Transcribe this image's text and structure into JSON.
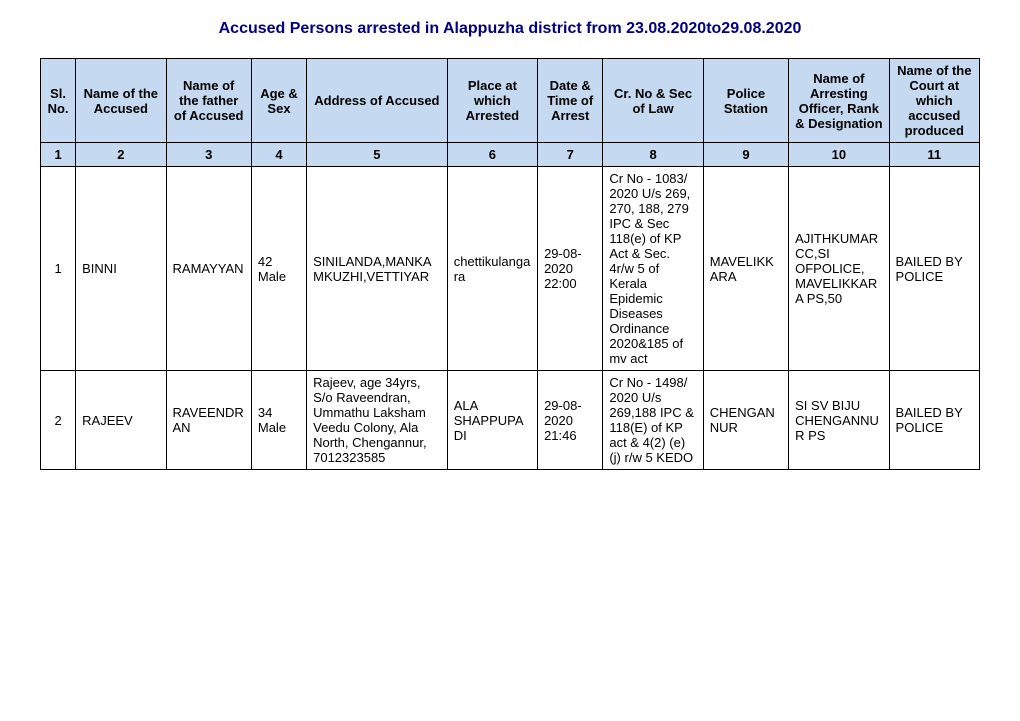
{
  "title": "Accused Persons arrested in   Alappuzha   district from  23.08.2020to29.08.2020",
  "headers": {
    "sl": "Sl. No.",
    "name": "Name of the Accused",
    "father": "Name of the father of Accused",
    "age": "Age & Sex",
    "address": "Address of Accused",
    "place": "Place at which Arrested",
    "date": "Date & Time of Arrest",
    "cr": "Cr. No & Sec of Law",
    "ps": "Police Station",
    "officer": "Name of Arresting Officer, Rank & Designation",
    "court": "Name of the Court at which accused produced"
  },
  "colnums": [
    "1",
    "2",
    "3",
    "4",
    "5",
    "6",
    "7",
    "8",
    "9",
    "10",
    "11"
  ],
  "rows": [
    {
      "sl": "1",
      "name": "BINNI",
      "father": "RAMAYYAN",
      "age": "42 Male",
      "address": "SINILANDA,MANKAMKUZHI,VETTIYAR",
      "place": "chettikulangara",
      "date": "29-08-2020 22:00",
      "cr": "Cr  No - 1083/ 2020 U/s 269, 270, 188, 279 IPC & Sec 118(e) of KP Act & Sec. 4r/w 5 of Kerala Epidemic Diseases Ordinance 2020&185 of mv act",
      "ps": "MAVELIKKARA",
      "officer": "AJITHKUMAR CC,SI OFPOLICE, MAVELIKKARA PS,50",
      "court": "BAILED BY POLICE"
    },
    {
      "sl": "2",
      "name": "RAJEEV",
      "father": "RAVEENDRAN",
      "age": "34 Male",
      "address": "Rajeev, age 34yrs, S/o Raveendran, Ummathu Laksham Veedu Colony, Ala North, Chengannur, 7012323585",
      "place": "ALA SHAPPUPADI",
      "date": "29-08-2020 21:46",
      "cr": "Cr  No - 1498/ 2020 U/s 269,188 IPC & 118(E) of KP act & 4(2) (e) (j) r/w 5 KEDO",
      "ps": "CHENGANNUR",
      "officer": "SI SV BIJU CHENGANNUR PS",
      "court": "BAILED BY POLICE"
    }
  ]
}
